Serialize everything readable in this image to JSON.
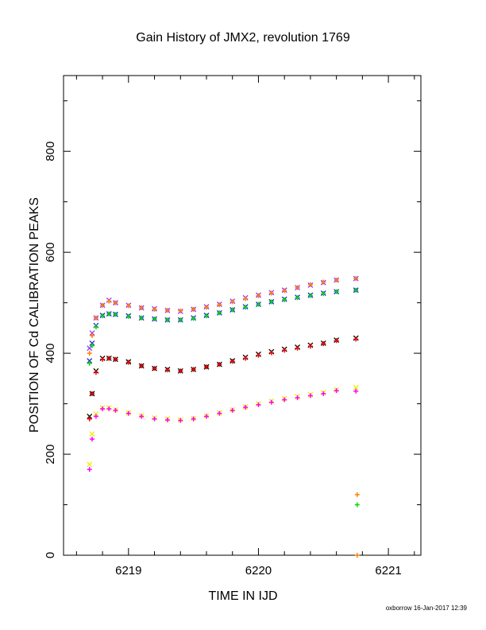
{
  "chart_data": {
    "type": "scatter",
    "title": "Gain History of JMX2, revolution 1769",
    "xlabel": "TIME IN IJD",
    "ylabel": "POSITION OF Cd CALIBRATION PEAKS",
    "xlim": [
      6218.5,
      6221.25
    ],
    "ylim": [
      0,
      950
    ],
    "x_ticks": [
      6219,
      6220,
      6221
    ],
    "x_tick_labels": [
      "6219",
      "6220",
      "6221"
    ],
    "y_ticks": [
      0,
      200,
      400,
      600,
      800
    ],
    "y_tick_labels": [
      "0",
      "200",
      "400",
      "600",
      "800"
    ],
    "grid": false,
    "legend": "none",
    "footer": "oxborrow 16-Jan-2017 12:39",
    "series": [
      {
        "color": "#9933ff",
        "marker": "x",
        "x": [
          6218.7,
          6218.72,
          6218.75,
          6218.8,
          6218.85,
          6218.9,
          6219.0,
          6219.1,
          6219.2,
          6219.3,
          6219.4,
          6219.5,
          6219.6,
          6219.7,
          6219.8,
          6219.9,
          6220.0,
          6220.1,
          6220.2,
          6220.3,
          6220.4,
          6220.5,
          6220.6,
          6220.75
        ],
        "y": [
          410,
          440,
          470,
          495,
          505,
          500,
          495,
          490,
          488,
          485,
          483,
          487,
          492,
          497,
          503,
          510,
          515,
          520,
          525,
          530,
          535,
          540,
          545,
          548
        ]
      },
      {
        "color": "#ff8000",
        "marker": "+",
        "x": [
          6218.7,
          6218.72,
          6218.75,
          6218.8,
          6218.85,
          6218.9,
          6219.0,
          6219.1,
          6219.2,
          6219.3,
          6219.4,
          6219.5,
          6219.6,
          6219.7,
          6219.8,
          6219.9,
          6220.0,
          6220.1,
          6220.2,
          6220.3,
          6220.4,
          6220.5,
          6220.6,
          6220.75
        ],
        "y": [
          400,
          435,
          470,
          495,
          503,
          500,
          494,
          490,
          487,
          485,
          484,
          487,
          491,
          496,
          502,
          508,
          514,
          519,
          524,
          530,
          536,
          541,
          545,
          548
        ]
      },
      {
        "color": "#2222dd",
        "marker": "x",
        "x": [
          6218.7,
          6218.72,
          6218.75,
          6218.8,
          6218.85,
          6218.9,
          6219.0,
          6219.1,
          6219.2,
          6219.3,
          6219.4,
          6219.5,
          6219.6,
          6219.7,
          6219.8,
          6219.9,
          6220.0,
          6220.1,
          6220.2,
          6220.3,
          6220.4,
          6220.5,
          6220.6,
          6220.75
        ],
        "y": [
          385,
          420,
          455,
          475,
          478,
          477,
          474,
          470,
          468,
          466,
          466,
          470,
          475,
          480,
          486,
          492,
          497,
          502,
          507,
          511,
          515,
          519,
          522,
          525
        ]
      },
      {
        "color": "#00dd00",
        "marker": "+",
        "x": [
          6218.7,
          6218.72,
          6218.75,
          6218.8,
          6218.85,
          6218.9,
          6219.0,
          6219.1,
          6219.2,
          6219.3,
          6219.4,
          6219.5,
          6219.6,
          6219.7,
          6219.8,
          6219.9,
          6220.0,
          6220.1,
          6220.2,
          6220.3,
          6220.4,
          6220.5,
          6220.6,
          6220.75,
          6220.76
        ],
        "y": [
          380,
          415,
          452,
          474,
          478,
          477,
          473,
          470,
          468,
          466,
          466,
          469,
          474,
          480,
          486,
          491,
          497,
          502,
          506,
          510,
          514,
          518,
          522,
          525,
          100
        ]
      },
      {
        "color": "#000000",
        "marker": "x",
        "x": [
          6218.7,
          6218.72,
          6218.75,
          6218.8,
          6218.85,
          6218.9,
          6219.0,
          6219.1,
          6219.2,
          6219.3,
          6219.4,
          6219.5,
          6219.6,
          6219.7,
          6219.8,
          6219.9,
          6220.0,
          6220.1,
          6220.2,
          6220.3,
          6220.4,
          6220.5,
          6220.6,
          6220.75
        ],
        "y": [
          275,
          320,
          365,
          390,
          390,
          388,
          383,
          375,
          370,
          368,
          365,
          368,
          373,
          378,
          385,
          392,
          398,
          403,
          408,
          412,
          416,
          420,
          426,
          430
        ]
      },
      {
        "color": "#ee0000",
        "marker": "+",
        "x": [
          6218.7,
          6218.72,
          6218.75,
          6218.8,
          6218.85,
          6218.9,
          6219.0,
          6219.1,
          6219.2,
          6219.3,
          6219.4,
          6219.5,
          6219.6,
          6219.7,
          6219.8,
          6219.9,
          6220.0,
          6220.1,
          6220.2,
          6220.3,
          6220.4,
          6220.5,
          6220.6,
          6220.75
        ],
        "y": [
          270,
          320,
          362,
          388,
          390,
          388,
          382,
          375,
          370,
          367,
          365,
          368,
          373,
          378,
          384,
          390,
          396,
          401,
          406,
          410,
          414,
          419,
          425,
          428
        ]
      },
      {
        "color": "#eeee00",
        "marker": "x",
        "x": [
          6218.7,
          6218.72,
          6218.75,
          6218.8,
          6218.85,
          6218.9,
          6219.0,
          6219.1,
          6219.2,
          6219.3,
          6219.4,
          6219.5,
          6219.6,
          6219.7,
          6219.8,
          6219.9,
          6220.0,
          6220.1,
          6220.2,
          6220.3,
          6220.4,
          6220.5,
          6220.6,
          6220.75
        ],
        "y": [
          180,
          240,
          280,
          292,
          292,
          288,
          282,
          276,
          272,
          270,
          268,
          271,
          276,
          282,
          288,
          294,
          300,
          305,
          310,
          314,
          318,
          322,
          328,
          332
        ]
      },
      {
        "color": "#ff00ff",
        "marker": "+",
        "x": [
          6218.7,
          6218.72,
          6218.75,
          6218.8,
          6218.85,
          6218.9,
          6219.0,
          6219.1,
          6219.2,
          6219.3,
          6219.4,
          6219.5,
          6219.6,
          6219.7,
          6219.8,
          6219.9,
          6220.0,
          6220.1,
          6220.2,
          6220.3,
          6220.4,
          6220.5,
          6220.6,
          6220.75
        ],
        "y": [
          170,
          230,
          275,
          290,
          290,
          287,
          281,
          275,
          270,
          268,
          267,
          270,
          275,
          281,
          287,
          293,
          298,
          303,
          308,
          312,
          316,
          320,
          326,
          325
        ]
      },
      {
        "color": "#ff8000",
        "marker": "+",
        "x": [
          6220.76,
          6220.76
        ],
        "y": [
          120,
          0
        ]
      }
    ]
  }
}
